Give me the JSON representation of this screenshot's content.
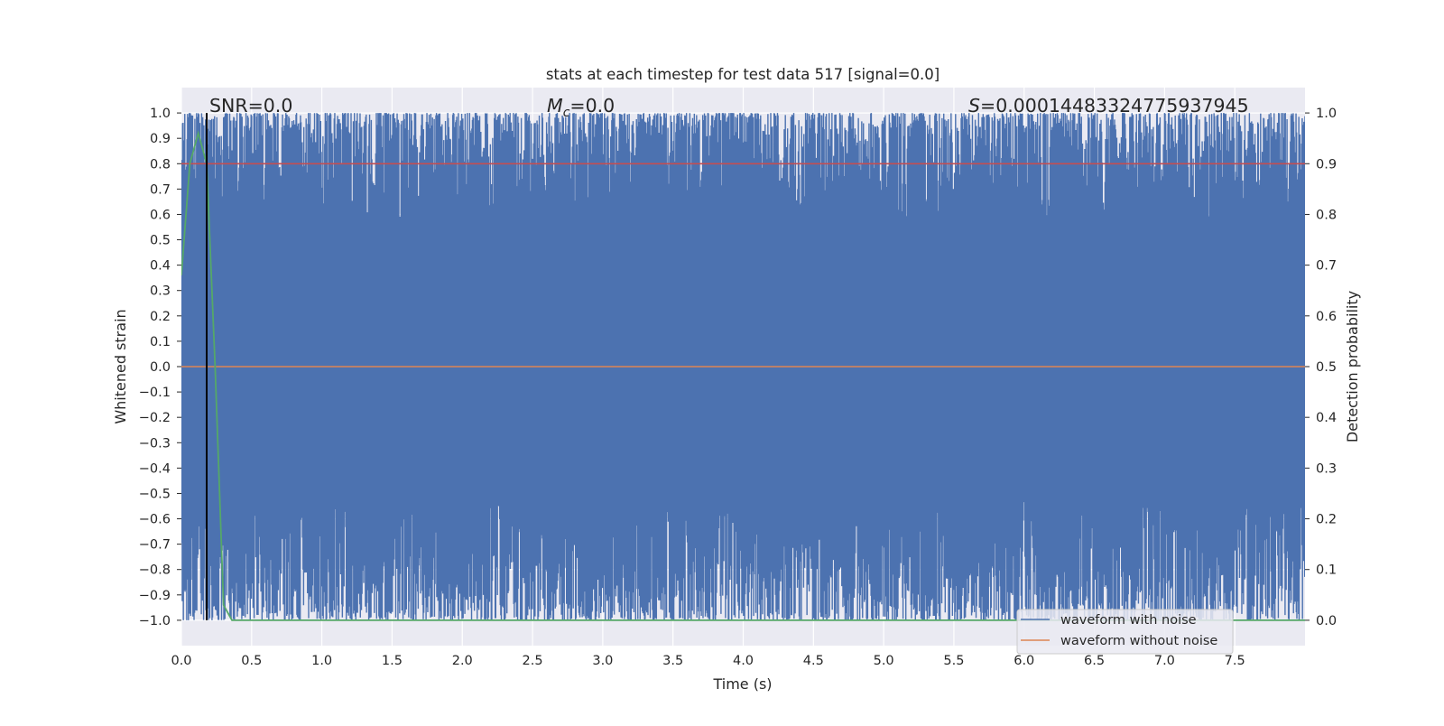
{
  "chart_data": {
    "type": "line",
    "title": "stats at each timestep for test data 517 [signal=0.0]",
    "xlabel": "Time (s)",
    "ylabel": "Whitened strain",
    "y2label": "Detection probability",
    "xlim": [
      0.0,
      8.0
    ],
    "ylim": [
      -1.1,
      1.1
    ],
    "y2lim": [
      -0.05,
      1.05
    ],
    "x_ticks": [
      "0.0",
      "0.5",
      "1.0",
      "1.5",
      "2.0",
      "2.5",
      "3.0",
      "3.5",
      "4.0",
      "4.5",
      "5.0",
      "5.5",
      "6.0",
      "6.5",
      "7.0",
      "7.5"
    ],
    "y_ticks": [
      "1.0",
      "0.9",
      "0.8",
      "0.7",
      "0.6",
      "0.5",
      "0.4",
      "0.3",
      "0.2",
      "0.1",
      "0.0",
      "−0.1",
      "−0.2",
      "−0.3",
      "−0.4",
      "−0.5",
      "−0.6",
      "−0.7",
      "−0.8",
      "−0.9",
      "−1.0"
    ],
    "y2_ticks": [
      "1.0",
      "0.9",
      "0.8",
      "0.7",
      "0.6",
      "0.5",
      "0.4",
      "0.3",
      "0.2",
      "0.1",
      "0.0"
    ],
    "grid": true,
    "legend_position": "lower-right",
    "annotations": {
      "snr": "SNR=0.0",
      "mc_symbol": "M",
      "mc_sub": "c",
      "mc_value": "=0.0",
      "s_symbol": "S",
      "s_value": "=0.00014483324775937945"
    },
    "series": [
      {
        "name": "waveform with noise",
        "color": "#4c72b0",
        "axis": "left",
        "description_range": [
          -1.0,
          1.0
        ]
      },
      {
        "name": "waveform without noise",
        "color": "#dd8452",
        "axis": "left",
        "x": [
          0.0,
          8.0
        ],
        "y": [
          0.0,
          0.0
        ]
      }
    ],
    "detection_probability": {
      "color": "#55a868",
      "axis": "right",
      "x": [
        0.0,
        0.06,
        0.12,
        0.18,
        0.24,
        0.3,
        0.36,
        8.0
      ],
      "y": [
        0.68,
        0.9,
        0.96,
        0.9,
        0.5,
        0.03,
        0.0,
        0.0
      ]
    },
    "threshold": {
      "color": "#c44e52",
      "axis": "right",
      "value": 0.9
    },
    "marker_line": {
      "color": "#000000",
      "x": 0.18
    }
  }
}
